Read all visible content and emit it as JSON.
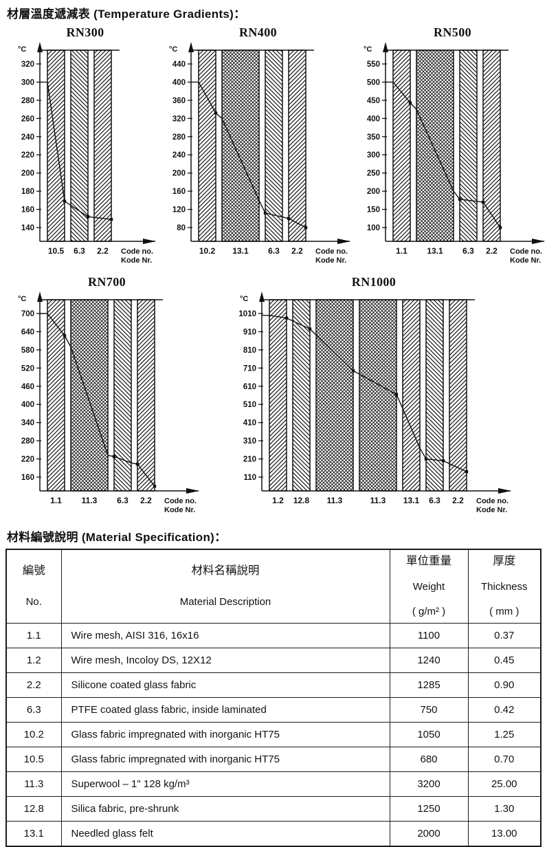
{
  "page": {
    "gradients_title": "材層溫度遞減表 (Temperature Gradients)：",
    "materials_title": "材料編號說明 (Material Specification)："
  },
  "chart_data": [
    {
      "type": "line",
      "title": "RN300",
      "y_unit": "°C",
      "x_axis_label": [
        "Code no.",
        "Kode Nr."
      ],
      "y_ticks": [
        320,
        300,
        280,
        260,
        240,
        220,
        200,
        180,
        160,
        140
      ],
      "layers": [
        {
          "code": "10.5",
          "hatch": "fwd",
          "w": 1
        },
        {
          "code": "6.3",
          "hatch": "back",
          "w": 1
        },
        {
          "code": "2.2",
          "hatch": "fwd",
          "w": 1
        }
      ],
      "points": [
        {
          "pos": "L0",
          "temp": 300
        },
        {
          "pos": "R0",
          "temp": 169,
          "marker": true
        },
        {
          "pos": "R1",
          "temp": 152,
          "marker": true
        },
        {
          "pos": "R2",
          "temp": 149,
          "marker": true
        }
      ]
    },
    {
      "type": "line",
      "title": "RN400",
      "y_unit": "°C",
      "x_axis_label": [
        "Code no.",
        "Kode Nr."
      ],
      "y_ticks": [
        440,
        400,
        360,
        320,
        280,
        240,
        200,
        160,
        120,
        80
      ],
      "layers": [
        {
          "code": "10.2",
          "hatch": "fwd",
          "w": 1
        },
        {
          "code": "13.1",
          "hatch": "cross",
          "w": 2
        },
        {
          "code": "6.3",
          "hatch": "back",
          "w": 1
        },
        {
          "code": "2.2",
          "hatch": "fwd",
          "w": 1
        }
      ],
      "points": [
        {
          "pos": "L0",
          "temp": 400
        },
        {
          "pos": "R0",
          "temp": 332,
          "marker": true
        },
        {
          "pos": "L1",
          "temp": 320
        },
        {
          "pos": "R1",
          "temp": 140
        },
        {
          "pos": "L2",
          "temp": 112,
          "marker": true
        },
        {
          "pos": "L3",
          "temp": 100,
          "marker": true
        },
        {
          "pos": "R3",
          "temp": 80,
          "marker": true
        }
      ]
    },
    {
      "type": "line",
      "title": "RN500",
      "y_unit": "°C",
      "x_axis_label": [
        "Code no.",
        "Kode Nr."
      ],
      "y_ticks": [
        550,
        500,
        450,
        400,
        350,
        300,
        250,
        200,
        150,
        100
      ],
      "layers": [
        {
          "code": "1.1",
          "hatch": "fwd",
          "w": 1
        },
        {
          "code": "13.1",
          "hatch": "cross",
          "w": 2
        },
        {
          "code": "6.3",
          "hatch": "back",
          "w": 1
        },
        {
          "code": "2.2",
          "hatch": "fwd",
          "w": 1
        }
      ],
      "points": [
        {
          "pos": "L0",
          "temp": 500
        },
        {
          "pos": "R0",
          "temp": 443,
          "marker": true
        },
        {
          "pos": "L1",
          "temp": 425
        },
        {
          "pos": "R1",
          "temp": 200
        },
        {
          "pos": "L2",
          "temp": 178,
          "marker": true
        },
        {
          "pos": "R2",
          "temp": 172
        },
        {
          "pos": "L3",
          "temp": 170,
          "marker": true
        },
        {
          "pos": "R3",
          "temp": 100,
          "marker": true
        }
      ]
    },
    {
      "type": "line",
      "title": "RN700",
      "y_unit": "°C",
      "x_axis_label": [
        "Code no.",
        "Kode Nr."
      ],
      "y_ticks": [
        700,
        640,
        580,
        520,
        460,
        400,
        340,
        280,
        220,
        160
      ],
      "layers": [
        {
          "code": "1.1",
          "hatch": "fwd",
          "w": 1
        },
        {
          "code": "11.3",
          "hatch": "cross",
          "w": 2
        },
        {
          "code": "6.3",
          "hatch": "back",
          "w": 1
        },
        {
          "code": "2.2",
          "hatch": "fwd",
          "w": 1
        }
      ],
      "points": [
        {
          "pos": "L0",
          "temp": 700
        },
        {
          "pos": "R0",
          "temp": 627,
          "marker": true
        },
        {
          "pos": "L1",
          "temp": 590
        },
        {
          "pos": "R1",
          "temp": 232
        },
        {
          "pos": "L2",
          "temp": 228,
          "marker": true
        },
        {
          "pos": "R2",
          "temp": 207
        },
        {
          "pos": "L3",
          "temp": 203,
          "marker": true
        },
        {
          "pos": "R3",
          "temp": 130,
          "marker": true
        }
      ]
    },
    {
      "type": "line",
      "title": "RN1000",
      "y_unit": "°C",
      "x_axis_label": [
        "Code no.",
        "Kode Nr."
      ],
      "y_ticks": [
        1010,
        910,
        810,
        710,
        610,
        510,
        410,
        310,
        210,
        110
      ],
      "layers": [
        {
          "code": "1.2",
          "hatch": "fwd",
          "w": 1
        },
        {
          "code": "12.8",
          "hatch": "back",
          "w": 1
        },
        {
          "code": "11.3",
          "hatch": "cross",
          "w": 2
        },
        {
          "code": "11.3",
          "hatch": "cross",
          "w": 2
        },
        {
          "code": "13.1",
          "hatch": "fwd",
          "w": 1
        },
        {
          "code": "6.3",
          "hatch": "back",
          "w": 1
        },
        {
          "code": "2.2",
          "hatch": "fwd",
          "w": 1
        }
      ],
      "points": [
        {
          "pos": "L0",
          "temp": 1000
        },
        {
          "pos": "R0",
          "temp": 985,
          "marker": true
        },
        {
          "pos": "R1",
          "temp": 925,
          "marker": true
        },
        {
          "pos": "R2",
          "temp": 695,
          "marker": true
        },
        {
          "pos": "R3",
          "temp": 565,
          "marker": true
        },
        {
          "pos": "R4",
          "temp": 270
        },
        {
          "pos": "L5",
          "temp": 210,
          "marker": true
        },
        {
          "pos": "R5",
          "temp": 200,
          "marker": true
        },
        {
          "pos": "R6",
          "temp": 140,
          "marker": true
        }
      ]
    }
  ],
  "table": {
    "headers": [
      {
        "lines": [
          "編號",
          "No."
        ]
      },
      {
        "lines": [
          "材料名稱說明",
          "Material Description"
        ]
      },
      {
        "lines": [
          "單位重量",
          "Weight",
          "( g/m² )"
        ]
      },
      {
        "lines": [
          "厚度",
          "Thickness",
          "( mm )"
        ]
      }
    ],
    "rows": [
      [
        "1.1",
        "Wire mesh, AISI 316, 16x16",
        "1100",
        "0.37"
      ],
      [
        "1.2",
        "Wire mesh, Incoloy DS, 12X12",
        "1240",
        "0.45"
      ],
      [
        "2.2",
        "Silicone coated glass fabric",
        "1285",
        "0.90"
      ],
      [
        "6.3",
        "PTFE coated glass fabric, inside laminated",
        "750",
        "0.42"
      ],
      [
        "10.2",
        "Glass fabric impregnated with inorganic HT75",
        "1050",
        "1.25"
      ],
      [
        "10.5",
        "Glass fabric impregnated with inorganic HT75",
        "680",
        "0.70"
      ],
      [
        "11.3",
        "Superwool – 1\" 128 kg/m³",
        "3200",
        "25.00"
      ],
      [
        "12.8",
        "Silica fabric, pre-shrunk",
        "1250",
        "1.30"
      ],
      [
        "13.1",
        "Needled glass felt",
        "2000",
        "13.00"
      ]
    ]
  }
}
